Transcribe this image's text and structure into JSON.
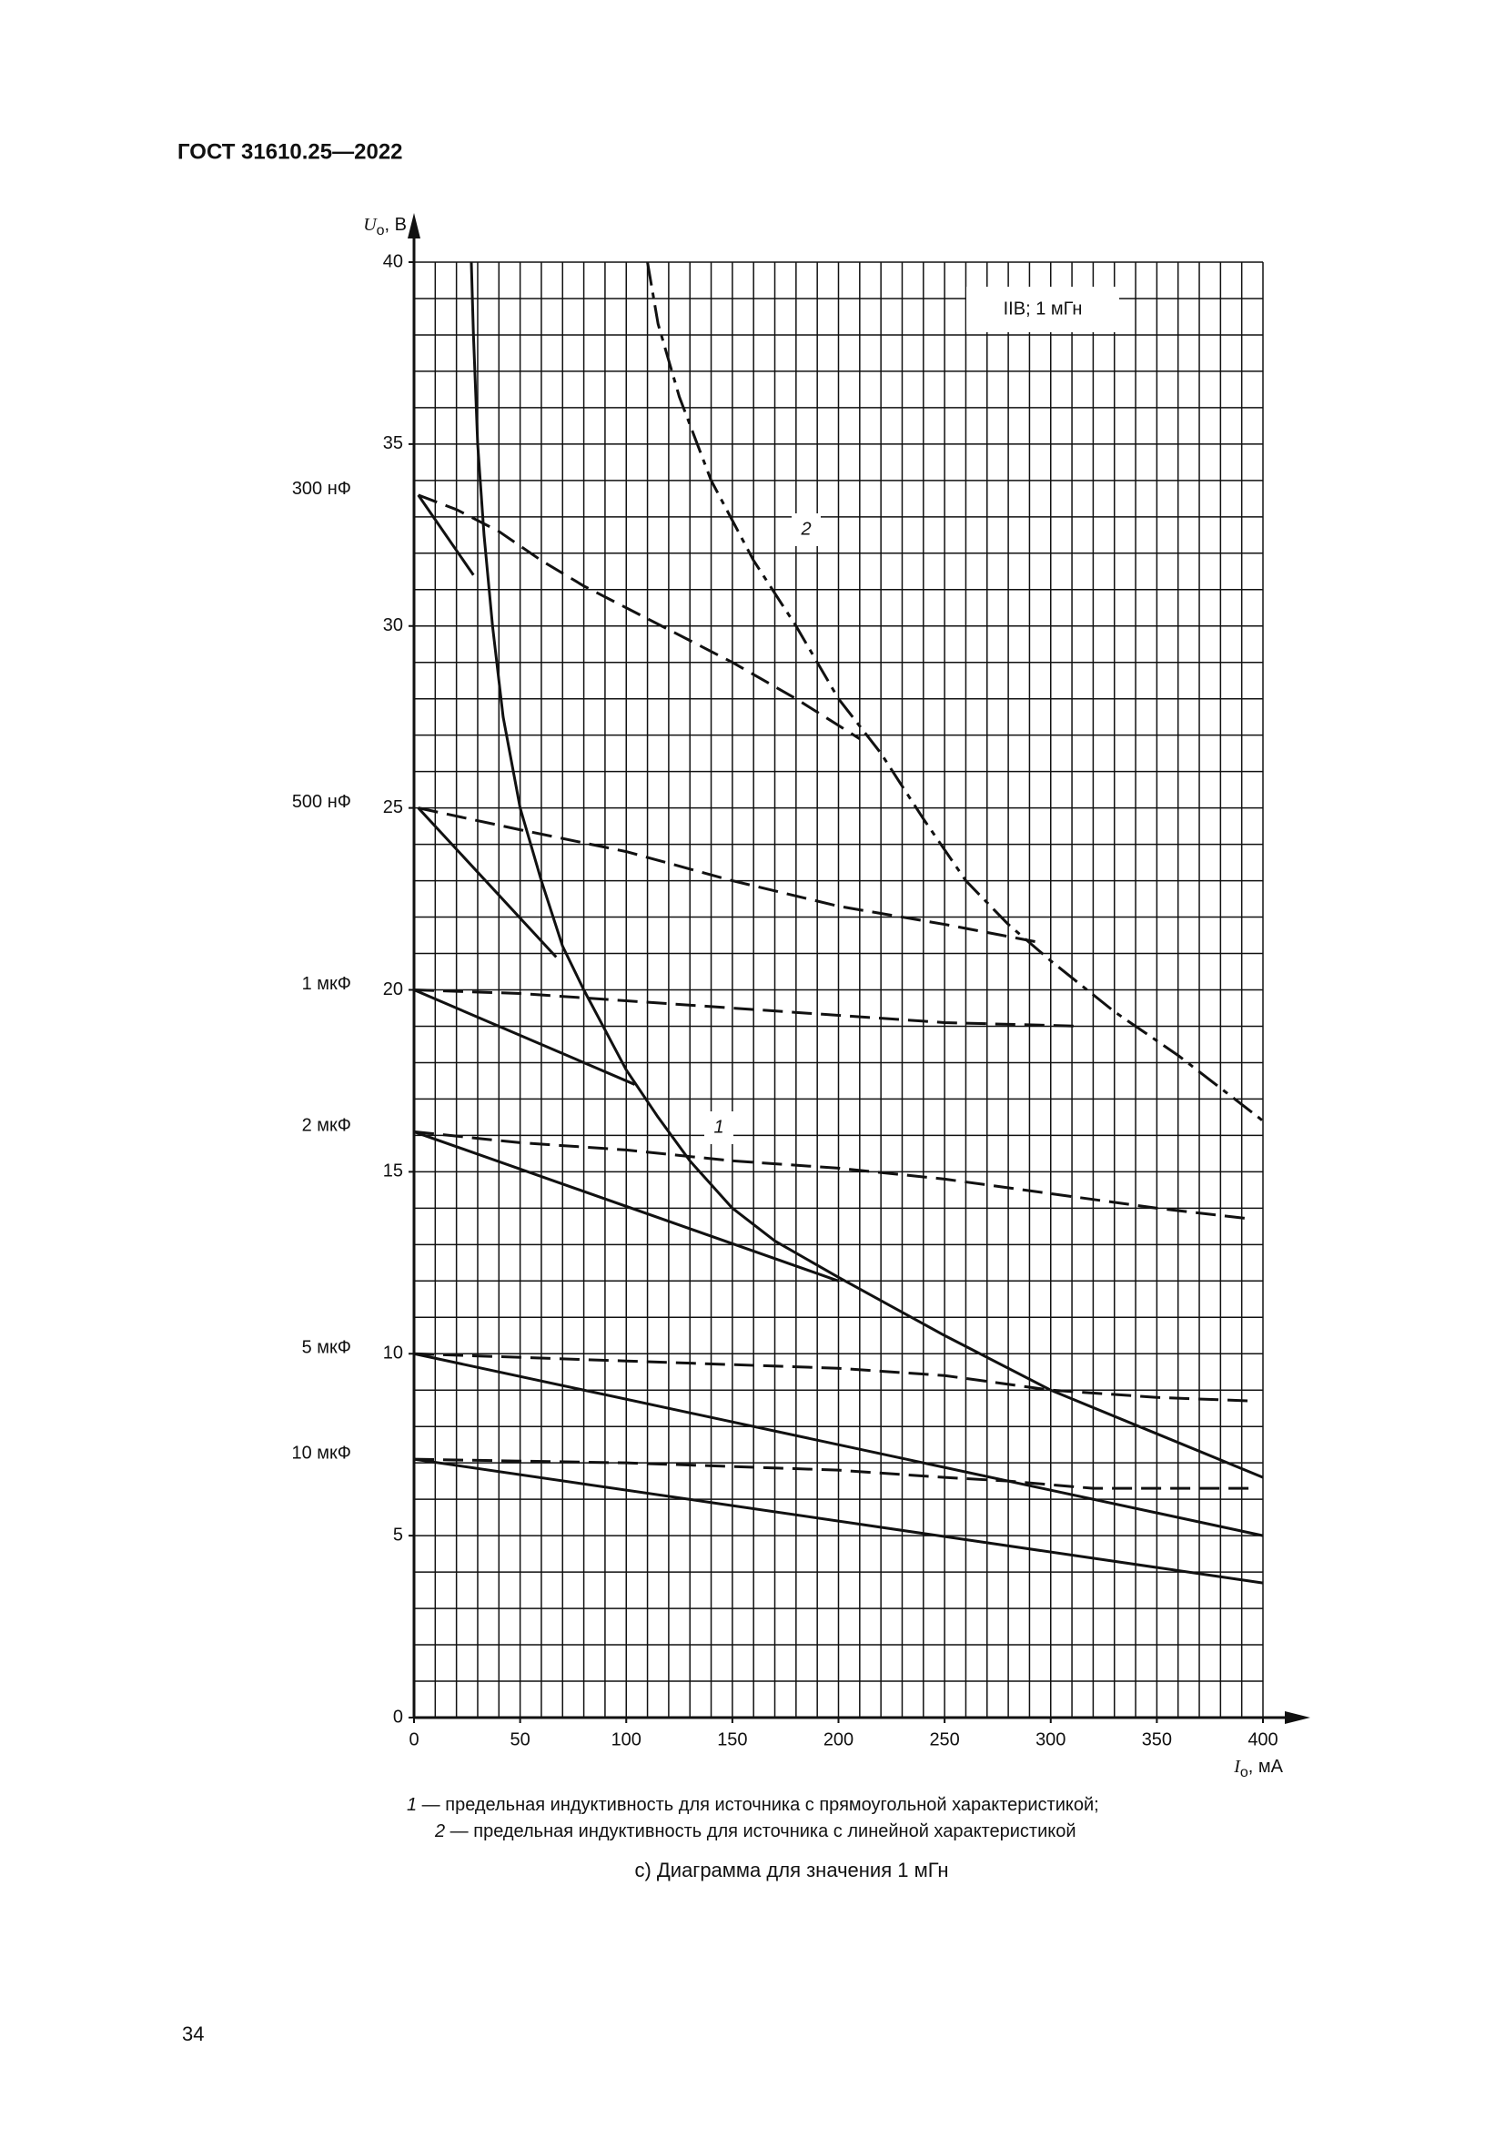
{
  "header": "ГОСТ 31610.25—2022",
  "chart_data": {
    "type": "line",
    "xlim": [
      0,
      400
    ],
    "ylim": [
      0,
      40
    ],
    "xticks": [
      0,
      50,
      100,
      150,
      200,
      250,
      300,
      350,
      400
    ],
    "yticks": [
      0,
      5,
      10,
      15,
      20,
      25,
      30,
      35,
      40
    ],
    "grid": true,
    "grid_minor": {
      "x": 10,
      "y": 1
    },
    "x_label": {
      "symbol": "I",
      "sub": "о",
      "unit": ", мА"
    },
    "y_label": {
      "symbol": "U",
      "sub": "о",
      "unit": ", В"
    },
    "box_label": "IIB; 1 мГн",
    "color": "#111111",
    "curves": [
      {
        "name": "1",
        "style": "solid",
        "x": [
          27,
          28,
          30,
          33,
          37,
          42,
          50,
          60,
          70,
          80,
          90,
          100,
          115,
          130,
          150,
          170,
          200,
          250,
          300,
          350,
          400
        ],
        "values": [
          40,
          38,
          35,
          32.5,
          30,
          27.5,
          25,
          23,
          21.2,
          20,
          18.9,
          17.8,
          16.5,
          15.3,
          14,
          13.1,
          12.1,
          10.5,
          9,
          7.8,
          6.6
        ]
      },
      {
        "name": "2",
        "style": "dashdot",
        "x": [
          110,
          115,
          125,
          140,
          160,
          180,
          200,
          220,
          240,
          260,
          280,
          300,
          330,
          360,
          400
        ],
        "values": [
          40,
          38.3,
          36.3,
          34,
          31.8,
          30,
          28,
          26.5,
          24.7,
          23,
          21.8,
          20.8,
          19.4,
          18.2,
          16.4
        ]
      }
    ],
    "capacitance": [
      {
        "label": "300 нФ",
        "solid": {
          "x": [
            2,
            28
          ],
          "values": [
            33.6,
            31.4
          ]
        },
        "dashed": {
          "x": [
            2,
            20,
            40,
            60,
            80,
            110,
            150,
            180,
            210
          ],
          "values": [
            33.6,
            33.2,
            32.6,
            31.8,
            31.1,
            30.2,
            29,
            28,
            26.9
          ]
        }
      },
      {
        "label": "500 нФ",
        "solid": {
          "x": [
            2,
            67
          ],
          "values": [
            25,
            20.9
          ]
        },
        "dashed": {
          "x": [
            2,
            50,
            100,
            150,
            200,
            250,
            295
          ],
          "values": [
            25,
            24.4,
            23.8,
            23,
            22.3,
            21.8,
            21.3
          ]
        }
      },
      {
        "label": "1 мкФ",
        "solid": {
          "x": [
            0,
            104
          ],
          "values": [
            20,
            17.4
          ]
        },
        "dashed": {
          "x": [
            0,
            50,
            100,
            150,
            200,
            250,
            315
          ],
          "values": [
            20,
            19.9,
            19.7,
            19.5,
            19.3,
            19.1,
            19
          ]
        }
      },
      {
        "label": "2 мкФ",
        "solid": {
          "x": [
            0,
            200
          ],
          "values": [
            16.1,
            12
          ]
        },
        "dashed": {
          "x": [
            0,
            50,
            100,
            150,
            200,
            250,
            300,
            350,
            395
          ],
          "values": [
            16.1,
            15.8,
            15.6,
            15.3,
            15.1,
            14.8,
            14.4,
            14,
            13.7
          ]
        }
      },
      {
        "label": "5 мкФ",
        "solid": {
          "x": [
            0,
            400
          ],
          "values": [
            10,
            5
          ]
        },
        "dashed": {
          "x": [
            0,
            100,
            200,
            250,
            300,
            350,
            395
          ],
          "values": [
            10,
            9.8,
            9.6,
            9.4,
            9,
            8.8,
            8.7
          ]
        }
      },
      {
        "label": "10 мкФ",
        "solid": {
          "x": [
            0,
            400
          ],
          "values": [
            7.1,
            3.7
          ]
        },
        "dashed": {
          "x": [
            0,
            100,
            200,
            250,
            280,
            320,
            395
          ],
          "values": [
            7.1,
            7,
            6.8,
            6.6,
            6.5,
            6.3,
            6.3
          ]
        }
      }
    ]
  },
  "notes": [
    {
      "num": "1",
      "text": " — предельная индуктивность для источника с прямоугольной характеристикой;"
    },
    {
      "num": "2",
      "text": " — предельная индуктивность для источника с линейной характеристикой"
    }
  ],
  "caption": "c) Диаграмма для значения 1 мГн",
  "page_number": "34"
}
